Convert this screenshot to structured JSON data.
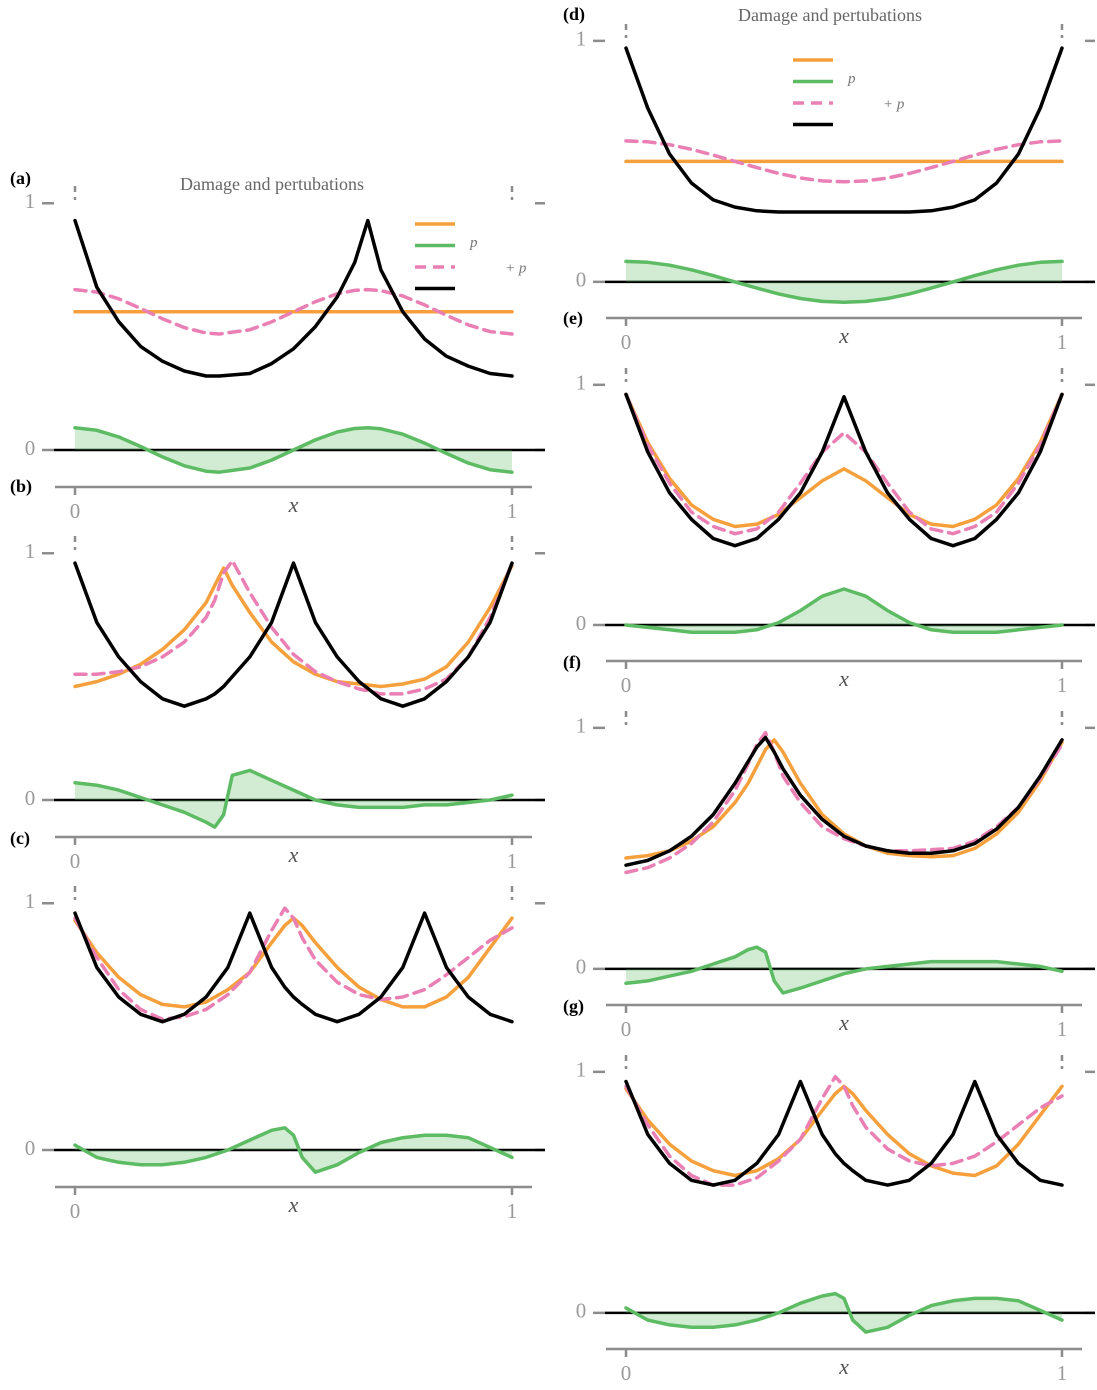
{
  "chart_data": [
    {
      "type": "line",
      "label": "(a)",
      "title": "Damage and pertubations",
      "xlabel": "x",
      "xlim": [
        0,
        1
      ],
      "xticks": [
        0,
        1
      ],
      "ylim": [
        -0.15,
        1.07
      ],
      "yticks": [
        0,
        1
      ],
      "zero_line": true,
      "legend": true,
      "x": [
        0,
        0.05,
        0.1,
        0.15,
        0.2,
        0.25,
        0.3,
        0.33,
        0.4,
        0.45,
        0.5,
        0.55,
        0.6,
        0.64,
        0.67,
        0.7,
        0.75,
        0.8,
        0.85,
        0.9,
        0.95,
        1
      ],
      "series": [
        {
          "color": "#f5a03c",
          "values": [
            0.56,
            0.56,
            0.56,
            0.56,
            0.56,
            0.56,
            0.56,
            0.56,
            0.56,
            0.56,
            0.56,
            0.56,
            0.56,
            0.56,
            0.56,
            0.56,
            0.56,
            0.56,
            0.56,
            0.56,
            0.56,
            0.56
          ]
        },
        {
          "name": "p",
          "color": "#5dbb63",
          "fill": true,
          "values": [
            0.09,
            0.08,
            0.053,
            0.014,
            -0.028,
            -0.064,
            -0.086,
            -0.09,
            -0.073,
            -0.041,
            0,
            0.041,
            0.073,
            0.087,
            0.09,
            0.086,
            0.064,
            0.028,
            -0.014,
            -0.053,
            -0.08,
            -0.09
          ]
        },
        {
          "name": "+ p",
          "color": "#ea7fb4",
          "linestyle": "dashed",
          "values": [
            0.65,
            0.64,
            0.613,
            0.574,
            0.532,
            0.496,
            0.474,
            0.47,
            0.487,
            0.519,
            0.56,
            0.601,
            0.633,
            0.647,
            0.65,
            0.646,
            0.624,
            0.588,
            0.546,
            0.507,
            0.48,
            0.47
          ]
        },
        {
          "color": "#000000",
          "values": [
            0.93,
            0.66,
            0.52,
            0.42,
            0.36,
            0.32,
            0.3,
            0.3,
            0.31,
            0.35,
            0.41,
            0.5,
            0.62,
            0.76,
            0.93,
            0.73,
            0.56,
            0.45,
            0.38,
            0.34,
            0.31,
            0.3
          ]
        }
      ]
    },
    {
      "type": "line",
      "label": "(b)",
      "xlabel": "x",
      "xlim": [
        0,
        1
      ],
      "xticks": [
        0,
        1
      ],
      "ylim": [
        -0.15,
        1.07
      ],
      "yticks": [
        0,
        1
      ],
      "zero_line": true,
      "x": [
        0,
        0.05,
        0.1,
        0.15,
        0.2,
        0.25,
        0.3,
        0.32,
        0.34,
        0.36,
        0.4,
        0.45,
        0.5,
        0.55,
        0.6,
        0.65,
        0.7,
        0.75,
        0.8,
        0.85,
        0.9,
        0.95,
        1
      ],
      "series": [
        {
          "color": "#f5a03c",
          "values": [
            0.46,
            0.48,
            0.51,
            0.55,
            0.61,
            0.69,
            0.8,
            0.87,
            0.94,
            0.87,
            0.76,
            0.64,
            0.56,
            0.51,
            0.48,
            0.47,
            0.46,
            0.47,
            0.49,
            0.54,
            0.64,
            0.78,
            0.95
          ]
        },
        {
          "color": "#5dbb63",
          "fill": true,
          "values": [
            0.07,
            0.06,
            0.04,
            0.01,
            -0.02,
            -0.05,
            -0.09,
            -0.11,
            -0.06,
            0.1,
            0.12,
            0.08,
            0.04,
            0,
            -0.02,
            -0.03,
            -0.03,
            -0.03,
            -0.02,
            -0.02,
            -0.01,
            0,
            0.02
          ]
        },
        {
          "color": "#ea7fb4",
          "linestyle": "dashed",
          "values": [
            0.51,
            0.51,
            0.52,
            0.54,
            0.58,
            0.64,
            0.74,
            0.81,
            0.92,
            0.97,
            0.84,
            0.7,
            0.59,
            0.52,
            0.48,
            0.45,
            0.43,
            0.43,
            0.45,
            0.49,
            0.58,
            0.74,
            0.96
          ]
        },
        {
          "color": "#000000",
          "values": [
            0.96,
            0.72,
            0.58,
            0.48,
            0.41,
            0.38,
            0.41,
            0.43,
            0.46,
            0.5,
            0.58,
            0.72,
            0.96,
            0.72,
            0.58,
            0.48,
            0.41,
            0.38,
            0.41,
            0.48,
            0.58,
            0.72,
            0.96
          ]
        }
      ]
    },
    {
      "type": "line",
      "label": "(c)",
      "xlabel": "x",
      "xlim": [
        0,
        1
      ],
      "xticks": [
        0,
        1
      ],
      "ylim": [
        -0.15,
        1.07
      ],
      "yticks": [
        0,
        1
      ],
      "zero_line": true,
      "x": [
        0,
        0.05,
        0.1,
        0.15,
        0.2,
        0.25,
        0.3,
        0.35,
        0.4,
        0.45,
        0.48,
        0.5,
        0.52,
        0.55,
        0.6,
        0.65,
        0.7,
        0.75,
        0.8,
        0.85,
        0.9,
        0.95,
        1
      ],
      "series": [
        {
          "color": "#f5a03c",
          "values": [
            0.93,
            0.8,
            0.7,
            0.63,
            0.59,
            0.58,
            0.6,
            0.65,
            0.72,
            0.84,
            0.91,
            0.94,
            0.91,
            0.84,
            0.74,
            0.66,
            0.61,
            0.58,
            0.58,
            0.62,
            0.7,
            0.82,
            0.94
          ]
        },
        {
          "color": "#5dbb63",
          "fill": true,
          "values": [
            0.02,
            -0.03,
            -0.05,
            -0.06,
            -0.06,
            -0.05,
            -0.03,
            0,
            0.04,
            0.08,
            0.09,
            0.06,
            -0.03,
            -0.09,
            -0.06,
            -0.01,
            0.03,
            0.05,
            0.06,
            0.06,
            0.05,
            0.01,
            -0.03
          ]
        },
        {
          "color": "#ea7fb4",
          "linestyle": "dashed",
          "values": [
            0.94,
            0.78,
            0.65,
            0.57,
            0.53,
            0.54,
            0.57,
            0.63,
            0.72,
            0.89,
            0.98,
            0.94,
            0.86,
            0.77,
            0.68,
            0.63,
            0.61,
            0.62,
            0.65,
            0.71,
            0.78,
            0.85,
            0.9
          ]
        },
        {
          "color": "#000000",
          "values": [
            0.96,
            0.74,
            0.62,
            0.55,
            0.52,
            0.55,
            0.62,
            0.74,
            0.96,
            0.74,
            0.66,
            0.62,
            0.59,
            0.55,
            0.52,
            0.55,
            0.62,
            0.74,
            0.96,
            0.74,
            0.62,
            0.55,
            0.52
          ]
        }
      ]
    },
    {
      "type": "line",
      "label": "(d)",
      "title": "Damage and pertubations",
      "xlabel": "x",
      "xlim": [
        0,
        1
      ],
      "xticks": [
        0,
        1
      ],
      "ylim": [
        -0.15,
        1.07
      ],
      "yticks": [
        0,
        1
      ],
      "zero_line": true,
      "legend": true,
      "x": [
        0,
        0.05,
        0.1,
        0.15,
        0.2,
        0.25,
        0.3,
        0.35,
        0.4,
        0.45,
        0.5,
        0.55,
        0.6,
        0.65,
        0.7,
        0.75,
        0.8,
        0.85,
        0.9,
        0.95,
        1
      ],
      "series": [
        {
          "color": "#f5a03c",
          "values": [
            0.5,
            0.5,
            0.5,
            0.5,
            0.5,
            0.5,
            0.5,
            0.5,
            0.5,
            0.5,
            0.5,
            0.5,
            0.5,
            0.5,
            0.5,
            0.5,
            0.5,
            0.5,
            0.5,
            0.5,
            0.5
          ]
        },
        {
          "name": "p",
          "color": "#5dbb63",
          "fill": true,
          "values": [
            0.085,
            0.081,
            0.069,
            0.05,
            0.026,
            0,
            -0.026,
            -0.05,
            -0.069,
            -0.081,
            -0.085,
            -0.081,
            -0.069,
            -0.05,
            -0.026,
            0,
            0.026,
            0.05,
            0.069,
            0.081,
            0.085
          ]
        },
        {
          "name": "+ p",
          "color": "#ea7fb4",
          "linestyle": "dashed",
          "values": [
            0.585,
            0.581,
            0.569,
            0.55,
            0.526,
            0.5,
            0.474,
            0.45,
            0.431,
            0.419,
            0.415,
            0.419,
            0.431,
            0.45,
            0.474,
            0.5,
            0.526,
            0.55,
            0.569,
            0.581,
            0.585
          ]
        },
        {
          "color": "#000000",
          "values": [
            0.97,
            0.72,
            0.53,
            0.41,
            0.34,
            0.31,
            0.295,
            0.29,
            0.29,
            0.29,
            0.29,
            0.29,
            0.29,
            0.29,
            0.295,
            0.31,
            0.34,
            0.41,
            0.53,
            0.72,
            0.97
          ]
        }
      ]
    },
    {
      "type": "line",
      "label": "(e)",
      "xlabel": "x",
      "xlim": [
        0,
        1
      ],
      "xticks": [
        0,
        1
      ],
      "ylim": [
        -0.15,
        1.07
      ],
      "yticks": [
        0,
        1
      ],
      "zero_line": true,
      "x": [
        0,
        0.05,
        0.1,
        0.15,
        0.2,
        0.25,
        0.3,
        0.35,
        0.4,
        0.45,
        0.5,
        0.55,
        0.6,
        0.65,
        0.7,
        0.75,
        0.8,
        0.85,
        0.9,
        0.95,
        1
      ],
      "series": [
        {
          "color": "#f5a03c",
          "values": [
            0.96,
            0.76,
            0.61,
            0.5,
            0.44,
            0.41,
            0.42,
            0.46,
            0.53,
            0.6,
            0.65,
            0.6,
            0.53,
            0.46,
            0.42,
            0.41,
            0.44,
            0.5,
            0.61,
            0.76,
            0.96
          ]
        },
        {
          "color": "#5dbb63",
          "fill": true,
          "values": [
            0,
            -0.01,
            -0.02,
            -0.03,
            -0.03,
            -0.03,
            -0.02,
            0.01,
            0.06,
            0.12,
            0.15,
            0.12,
            0.06,
            0.01,
            -0.02,
            -0.03,
            -0.03,
            -0.03,
            -0.02,
            -0.01,
            0
          ]
        },
        {
          "color": "#ea7fb4",
          "linestyle": "dashed",
          "values": [
            0.96,
            0.75,
            0.59,
            0.47,
            0.41,
            0.38,
            0.4,
            0.47,
            0.59,
            0.72,
            0.8,
            0.72,
            0.59,
            0.47,
            0.4,
            0.38,
            0.41,
            0.47,
            0.59,
            0.75,
            0.96
          ]
        },
        {
          "color": "#000000",
          "values": [
            0.96,
            0.72,
            0.55,
            0.44,
            0.36,
            0.33,
            0.36,
            0.44,
            0.55,
            0.72,
            0.95,
            0.72,
            0.55,
            0.44,
            0.36,
            0.33,
            0.36,
            0.44,
            0.55,
            0.72,
            0.96
          ]
        }
      ]
    },
    {
      "type": "line",
      "label": "(f)",
      "xlabel": "x",
      "xlim": [
        0,
        1
      ],
      "xticks": [
        0,
        1
      ],
      "ylim": [
        -0.15,
        1.07
      ],
      "yticks": [
        0,
        1
      ],
      "zero_line": true,
      "x": [
        0,
        0.05,
        0.1,
        0.15,
        0.2,
        0.25,
        0.28,
        0.3,
        0.32,
        0.34,
        0.36,
        0.4,
        0.45,
        0.5,
        0.55,
        0.6,
        0.65,
        0.7,
        0.75,
        0.8,
        0.85,
        0.9,
        0.95,
        1
      ],
      "series": [
        {
          "color": "#f5a03c",
          "values": [
            0.46,
            0.47,
            0.49,
            0.53,
            0.59,
            0.69,
            0.77,
            0.84,
            0.91,
            0.95,
            0.9,
            0.77,
            0.64,
            0.56,
            0.51,
            0.48,
            0.47,
            0.465,
            0.47,
            0.5,
            0.56,
            0.65,
            0.78,
            0.94
          ]
        },
        {
          "color": "#5dbb63",
          "fill": true,
          "values": [
            -0.06,
            -0.05,
            -0.03,
            -0.01,
            0.02,
            0.05,
            0.08,
            0.09,
            0.07,
            -0.05,
            -0.1,
            -0.08,
            -0.05,
            -0.02,
            0,
            0.01,
            0.02,
            0.03,
            0.03,
            0.03,
            0.03,
            0.02,
            0.01,
            -0.01
          ]
        },
        {
          "color": "#ea7fb4",
          "linestyle": "dashed",
          "values": [
            0.4,
            0.42,
            0.46,
            0.52,
            0.61,
            0.74,
            0.85,
            0.93,
            0.98,
            0.9,
            0.8,
            0.69,
            0.59,
            0.54,
            0.51,
            0.49,
            0.49,
            0.495,
            0.5,
            0.53,
            0.59,
            0.67,
            0.79,
            0.93
          ]
        },
        {
          "color": "#000000",
          "values": [
            0.43,
            0.45,
            0.49,
            0.55,
            0.64,
            0.77,
            0.86,
            0.92,
            0.96,
            0.9,
            0.83,
            0.72,
            0.62,
            0.55,
            0.51,
            0.49,
            0.48,
            0.48,
            0.49,
            0.52,
            0.58,
            0.67,
            0.8,
            0.95
          ]
        }
      ]
    },
    {
      "type": "line",
      "label": "(g)",
      "xlabel": "x",
      "xlim": [
        0,
        1
      ],
      "xticks": [
        0,
        1
      ],
      "ylim": [
        -0.15,
        1.07
      ],
      "yticks": [
        0,
        1
      ],
      "zero_line": true,
      "x": [
        0,
        0.05,
        0.1,
        0.15,
        0.2,
        0.25,
        0.3,
        0.35,
        0.4,
        0.45,
        0.48,
        0.5,
        0.52,
        0.55,
        0.6,
        0.65,
        0.7,
        0.75,
        0.8,
        0.85,
        0.9,
        0.95,
        1
      ],
      "series": [
        {
          "color": "#f5a03c",
          "values": [
            0.93,
            0.8,
            0.7,
            0.63,
            0.59,
            0.57,
            0.59,
            0.64,
            0.72,
            0.84,
            0.91,
            0.94,
            0.91,
            0.84,
            0.74,
            0.66,
            0.61,
            0.58,
            0.57,
            0.61,
            0.7,
            0.82,
            0.94
          ]
        },
        {
          "color": "#5dbb63",
          "fill": true,
          "values": [
            0.02,
            -0.03,
            -0.05,
            -0.06,
            -0.06,
            -0.05,
            -0.03,
            0,
            0.04,
            0.07,
            0.08,
            0.06,
            -0.03,
            -0.08,
            -0.06,
            -0.01,
            0.03,
            0.05,
            0.06,
            0.06,
            0.05,
            0.01,
            -0.03
          ]
        },
        {
          "color": "#ea7fb4",
          "linestyle": "dashed",
          "values": [
            0.94,
            0.78,
            0.65,
            0.57,
            0.53,
            0.53,
            0.56,
            0.63,
            0.72,
            0.89,
            0.98,
            0.94,
            0.86,
            0.77,
            0.68,
            0.63,
            0.61,
            0.62,
            0.65,
            0.71,
            0.78,
            0.85,
            0.9
          ]
        },
        {
          "color": "#000000",
          "values": [
            0.96,
            0.74,
            0.62,
            0.55,
            0.53,
            0.55,
            0.62,
            0.74,
            0.96,
            0.74,
            0.66,
            0.62,
            0.59,
            0.55,
            0.53,
            0.55,
            0.62,
            0.74,
            0.96,
            0.74,
            0.62,
            0.55,
            0.53
          ]
        }
      ]
    }
  ]
}
